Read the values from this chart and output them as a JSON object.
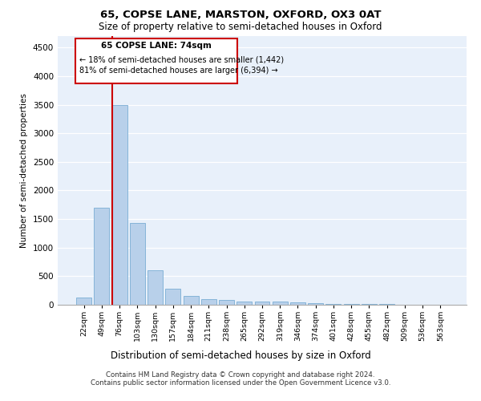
{
  "title1": "65, COPSE LANE, MARSTON, OXFORD, OX3 0AT",
  "title2": "Size of property relative to semi-detached houses in Oxford",
  "xlabel": "Distribution of semi-detached houses by size in Oxford",
  "ylabel": "Number of semi-detached properties",
  "footnote1": "Contains HM Land Registry data © Crown copyright and database right 2024.",
  "footnote2": "Contains public sector information licensed under the Open Government Licence v3.0.",
  "property_label": "65 COPSE LANE: 74sqm",
  "pct_smaller": 18,
  "n_smaller": "1,442",
  "pct_larger": 81,
  "n_larger": "6,394",
  "bin_labels": [
    "22sqm",
    "49sqm",
    "76sqm",
    "103sqm",
    "130sqm",
    "157sqm",
    "184sqm",
    "211sqm",
    "238sqm",
    "265sqm",
    "292sqm",
    "319sqm",
    "346sqm",
    "374sqm",
    "401sqm",
    "428sqm",
    "455sqm",
    "482sqm",
    "509sqm",
    "536sqm",
    "563sqm"
  ],
  "bar_values": [
    120,
    1700,
    3500,
    1430,
    610,
    285,
    155,
    100,
    90,
    60,
    55,
    50,
    40,
    30,
    20,
    15,
    10,
    8,
    5,
    4,
    3
  ],
  "bar_color": "#b8d0ea",
  "bar_edgecolor": "#7aadd4",
  "redline_color": "#cc0000",
  "ylim": [
    0,
    4700
  ],
  "yticks": [
    0,
    500,
    1000,
    1500,
    2000,
    2500,
    3000,
    3500,
    4000,
    4500
  ],
  "plot_bg": "#e8f0fa",
  "annotation_box_color": "#cc0000",
  "grid_color": "#ffffff"
}
